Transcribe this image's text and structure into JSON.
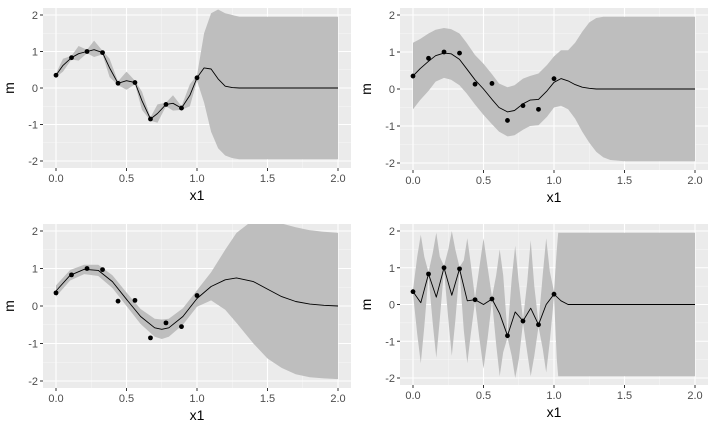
{
  "style": {
    "panel_bg": "#ebebeb",
    "grid_major": "#ffffff",
    "ribbon": "#bebebe",
    "line": "#000000",
    "point": "#000000",
    "tick_text": "#4d4d4d"
  },
  "chart_data": [
    {
      "type": "line",
      "xlabel": "x1",
      "ylabel": "m",
      "xlim": [
        0,
        2
      ],
      "ylim": [
        -2,
        2
      ],
      "xticks": [
        "0.0",
        "0.5",
        "1.0",
        "1.5",
        "2.0"
      ],
      "yticks": [
        "-2",
        "-1",
        "0",
        "1",
        "2"
      ],
      "grid": true,
      "points": {
        "x": [
          0.0,
          0.11,
          0.22,
          0.33,
          0.44,
          0.56,
          0.67,
          0.78,
          0.89,
          1.0
        ],
        "y": [
          0.35,
          0.83,
          1.0,
          0.97,
          0.13,
          0.15,
          -0.85,
          -0.45,
          -0.55,
          0.28
        ]
      },
      "mean": {
        "x": [
          0.0,
          0.05,
          0.11,
          0.16,
          0.22,
          0.27,
          0.33,
          0.38,
          0.44,
          0.5,
          0.56,
          0.61,
          0.67,
          0.72,
          0.78,
          0.83,
          0.89,
          0.95,
          1.0,
          1.05,
          1.1,
          1.15,
          1.2,
          1.25,
          1.3,
          1.4,
          1.6,
          1.8,
          2.0
        ],
        "y": [
          0.35,
          0.62,
          0.83,
          0.94,
          1.0,
          1.05,
          0.97,
          0.55,
          0.13,
          0.2,
          0.15,
          -0.35,
          -0.85,
          -0.7,
          -0.45,
          -0.42,
          -0.55,
          -0.2,
          0.28,
          0.55,
          0.52,
          0.25,
          0.05,
          0.01,
          0.0,
          0.0,
          0.0,
          0.0,
          0.0
        ]
      },
      "band": {
        "x": [
          0.0,
          0.05,
          0.11,
          0.16,
          0.22,
          0.27,
          0.33,
          0.38,
          0.44,
          0.5,
          0.56,
          0.61,
          0.67,
          0.72,
          0.78,
          0.83,
          0.89,
          0.95,
          1.0,
          1.05,
          1.1,
          1.15,
          1.2,
          1.25,
          1.3,
          1.4,
          1.6,
          1.8,
          2.0
        ],
        "lower": [
          0.3,
          0.45,
          0.78,
          0.75,
          0.95,
          0.85,
          0.92,
          0.3,
          0.08,
          -0.05,
          0.1,
          -0.6,
          -0.9,
          -0.95,
          -0.5,
          -0.62,
          -0.6,
          -0.5,
          0.2,
          -0.4,
          -1.2,
          -1.65,
          -1.85,
          -1.92,
          -1.95,
          -1.95,
          -1.95,
          -1.95,
          -1.95
        ],
        "upper": [
          0.4,
          0.8,
          0.88,
          1.15,
          1.05,
          1.3,
          1.02,
          0.8,
          0.18,
          0.45,
          0.2,
          -0.1,
          -0.8,
          -0.45,
          -0.4,
          -0.2,
          -0.5,
          0.1,
          0.35,
          1.5,
          2.05,
          2.15,
          2.05,
          2.0,
          1.95,
          1.95,
          1.95,
          1.95,
          1.95
        ]
      }
    },
    {
      "type": "line",
      "xlabel": "x1",
      "ylabel": "m",
      "xlim": [
        0,
        2
      ],
      "ylim": [
        -2,
        2
      ],
      "xticks": [
        "0.0",
        "0.5",
        "1.0",
        "1.5",
        "2.0"
      ],
      "yticks": [
        "-2",
        "-1",
        "0",
        "1",
        "2"
      ],
      "grid": true,
      "points": {
        "x": [
          0.0,
          0.11,
          0.22,
          0.33,
          0.44,
          0.56,
          0.67,
          0.78,
          0.89,
          1.0
        ],
        "y": [
          0.35,
          0.83,
          1.0,
          0.97,
          0.13,
          0.15,
          -0.85,
          -0.45,
          -0.55,
          0.28
        ]
      },
      "mean": {
        "x": [
          0.0,
          0.05,
          0.11,
          0.16,
          0.22,
          0.27,
          0.33,
          0.38,
          0.44,
          0.5,
          0.56,
          0.61,
          0.67,
          0.72,
          0.78,
          0.83,
          0.89,
          0.95,
          1.0,
          1.05,
          1.1,
          1.15,
          1.2,
          1.25,
          1.3,
          1.35,
          1.4,
          1.5,
          1.6,
          1.8,
          2.0
        ],
        "y": [
          0.35,
          0.55,
          0.75,
          0.9,
          0.97,
          0.95,
          0.8,
          0.55,
          0.25,
          0.0,
          -0.28,
          -0.5,
          -0.62,
          -0.58,
          -0.4,
          -0.3,
          -0.28,
          -0.05,
          0.18,
          0.28,
          0.22,
          0.12,
          0.05,
          0.02,
          0.0,
          0.0,
          0.0,
          0.0,
          0.0,
          0.0,
          0.0
        ]
      },
      "band": {
        "x": [
          0.0,
          0.05,
          0.11,
          0.16,
          0.22,
          0.27,
          0.33,
          0.38,
          0.44,
          0.5,
          0.56,
          0.61,
          0.67,
          0.72,
          0.78,
          0.83,
          0.89,
          0.95,
          1.0,
          1.05,
          1.1,
          1.15,
          1.2,
          1.25,
          1.3,
          1.35,
          1.4,
          1.5,
          1.6,
          1.8,
          2.0
        ],
        "lower": [
          -0.55,
          -0.3,
          -0.05,
          0.2,
          0.3,
          0.25,
          0.1,
          -0.12,
          -0.42,
          -0.7,
          -0.95,
          -1.15,
          -1.28,
          -1.25,
          -1.1,
          -1.0,
          -0.98,
          -0.75,
          -0.5,
          -0.45,
          -0.55,
          -0.8,
          -1.15,
          -1.45,
          -1.7,
          -1.85,
          -1.92,
          -1.95,
          -1.95,
          -1.95,
          -1.95
        ],
        "upper": [
          1.25,
          1.35,
          1.5,
          1.6,
          1.65,
          1.62,
          1.5,
          1.25,
          0.92,
          0.68,
          0.4,
          0.15,
          0.05,
          0.1,
          0.28,
          0.35,
          0.42,
          0.65,
          0.88,
          1.05,
          1.05,
          1.25,
          1.55,
          1.8,
          1.92,
          1.95,
          1.95,
          1.95,
          1.95,
          1.95,
          1.95
        ]
      }
    },
    {
      "type": "line",
      "xlabel": "x1",
      "ylabel": "m",
      "xlim": [
        0,
        2
      ],
      "ylim": [
        -2,
        2
      ],
      "xticks": [
        "0.0",
        "0.5",
        "1.0",
        "1.5",
        "2.0"
      ],
      "yticks": [
        "-2",
        "-1",
        "0",
        "1",
        "2"
      ],
      "grid": true,
      "points": {
        "x": [
          0.0,
          0.11,
          0.22,
          0.33,
          0.44,
          0.56,
          0.67,
          0.78,
          0.89,
          1.0
        ],
        "y": [
          0.35,
          0.83,
          1.0,
          0.97,
          0.13,
          0.15,
          -0.85,
          -0.45,
          -0.55,
          0.28
        ]
      },
      "mean": {
        "x": [
          0.0,
          0.1,
          0.2,
          0.3,
          0.4,
          0.5,
          0.6,
          0.7,
          0.75,
          0.8,
          0.9,
          1.0,
          1.1,
          1.2,
          1.28,
          1.4,
          1.5,
          1.6,
          1.7,
          1.8,
          1.9,
          2.0
        ],
        "y": [
          0.4,
          0.82,
          0.98,
          0.95,
          0.65,
          0.18,
          -0.28,
          -0.58,
          -0.62,
          -0.58,
          -0.28,
          0.2,
          0.52,
          0.7,
          0.75,
          0.65,
          0.45,
          0.25,
          0.12,
          0.05,
          0.02,
          0.0
        ]
      },
      "band": {
        "x": [
          0.0,
          0.1,
          0.2,
          0.3,
          0.4,
          0.5,
          0.6,
          0.7,
          0.75,
          0.8,
          0.9,
          1.0,
          1.1,
          1.2,
          1.28,
          1.4,
          1.5,
          1.6,
          1.7,
          1.8,
          1.9,
          2.0
        ],
        "lower": [
          0.25,
          0.68,
          0.85,
          0.8,
          0.48,
          0.0,
          -0.48,
          -0.82,
          -0.88,
          -0.82,
          -0.5,
          -0.02,
          0.15,
          -0.1,
          -0.45,
          -1.0,
          -1.4,
          -1.65,
          -1.82,
          -1.9,
          -1.93,
          -1.95
        ],
        "upper": [
          0.55,
          0.96,
          1.1,
          1.1,
          0.82,
          0.36,
          -0.08,
          -0.34,
          -0.36,
          -0.34,
          -0.06,
          0.42,
          0.9,
          1.5,
          1.95,
          2.3,
          2.3,
          2.2,
          2.1,
          2.02,
          1.98,
          1.95
        ]
      }
    },
    {
      "type": "line",
      "xlabel": "x1",
      "ylabel": "m",
      "xlim": [
        0,
        2
      ],
      "ylim": [
        -2,
        2
      ],
      "xticks": [
        "0.0",
        "0.5",
        "1.0",
        "1.5",
        "2.0"
      ],
      "yticks": [
        "-2",
        "-1",
        "0",
        "1",
        "2"
      ],
      "grid": true,
      "points": {
        "x": [
          0.0,
          0.11,
          0.22,
          0.33,
          0.44,
          0.56,
          0.67,
          0.78,
          0.89,
          1.0
        ],
        "y": [
          0.35,
          0.83,
          1.0,
          0.97,
          0.13,
          0.15,
          -0.85,
          -0.45,
          -0.55,
          0.28
        ]
      },
      "mean": {
        "x": [
          0.0,
          0.055,
          0.11,
          0.165,
          0.22,
          0.275,
          0.33,
          0.385,
          0.44,
          0.5,
          0.56,
          0.615,
          0.67,
          0.725,
          0.78,
          0.835,
          0.89,
          0.945,
          1.0,
          1.05,
          1.1,
          1.2,
          1.5,
          2.0
        ],
        "y": [
          0.35,
          0.05,
          0.83,
          0.2,
          1.0,
          0.25,
          0.97,
          0.1,
          0.13,
          0.0,
          0.15,
          -0.25,
          -0.85,
          -0.2,
          -0.45,
          -0.1,
          -0.55,
          0.0,
          0.28,
          0.1,
          0.0,
          0.0,
          0.0,
          0.0
        ]
      },
      "band": {
        "x": [
          0.0,
          0.03,
          0.055,
          0.08,
          0.11,
          0.14,
          0.165,
          0.19,
          0.22,
          0.25,
          0.275,
          0.3,
          0.33,
          0.36,
          0.385,
          0.41,
          0.44,
          0.47,
          0.5,
          0.53,
          0.56,
          0.59,
          0.615,
          0.64,
          0.67,
          0.7,
          0.725,
          0.75,
          0.78,
          0.81,
          0.835,
          0.86,
          0.89,
          0.92,
          0.945,
          0.97,
          1.0,
          1.02,
          1.03,
          1.05,
          1.1,
          1.5,
          2.0
        ],
        "lower": [
          0.3,
          -0.8,
          -1.6,
          -0.6,
          0.78,
          -0.5,
          -1.45,
          -0.4,
          0.95,
          -0.4,
          -1.4,
          -0.45,
          0.92,
          -0.7,
          -1.6,
          -0.8,
          0.08,
          -0.9,
          -1.75,
          -0.9,
          0.1,
          -1.1,
          -1.95,
          -1.3,
          -0.9,
          -1.4,
          -2.0,
          -1.5,
          -0.5,
          -1.3,
          -1.95,
          -1.4,
          -0.6,
          -1.2,
          -1.85,
          -1.0,
          0.22,
          -1.5,
          -1.95,
          -1.95,
          -1.95,
          -1.95,
          -1.95
        ],
        "upper": [
          0.4,
          1.3,
          1.9,
          1.3,
          0.88,
          1.4,
          1.95,
          1.3,
          1.05,
          1.5,
          2.0,
          1.5,
          1.02,
          1.2,
          1.8,
          1.1,
          0.18,
          1.0,
          1.8,
          1.0,
          0.2,
          0.8,
          1.5,
          0.8,
          -0.8,
          0.7,
          1.6,
          0.6,
          -0.4,
          0.6,
          1.75,
          0.5,
          -0.5,
          0.8,
          1.8,
          0.9,
          0.35,
          1.5,
          1.95,
          1.95,
          1.95,
          1.95,
          1.95
        ]
      }
    }
  ]
}
